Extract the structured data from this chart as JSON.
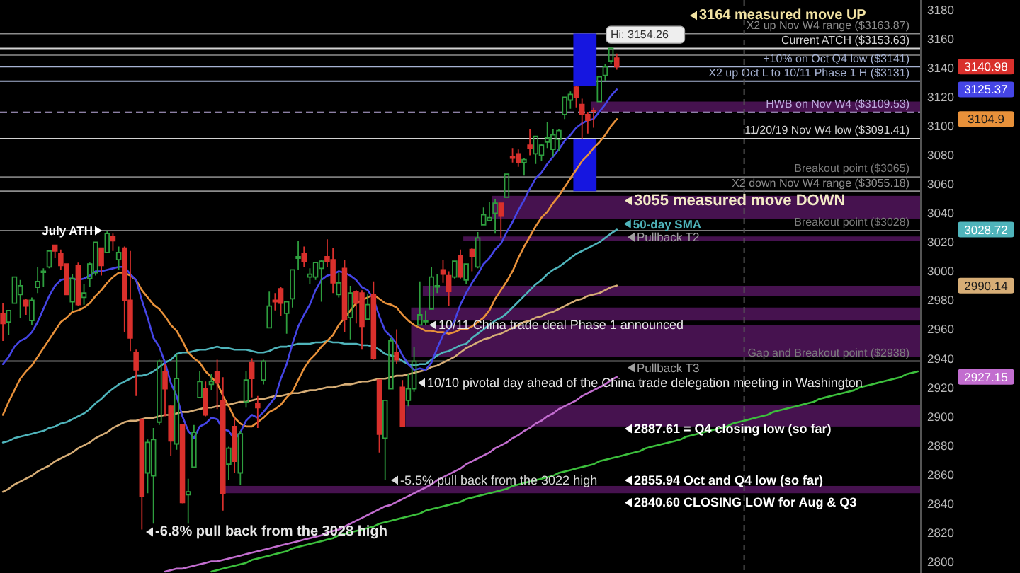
{
  "chart_data": {
    "type": "candlestick",
    "ylim": [
      2792,
      3187
    ],
    "yticks": [
      2800,
      2820,
      2840,
      2860,
      2880,
      2900,
      2920,
      2940,
      2960,
      2980,
      3000,
      3020,
      3040,
      3060,
      3080,
      3100,
      3120,
      3140,
      3160,
      3180
    ],
    "tick_labels": "y",
    "categories": [
      null,
      null,
      null,
      null,
      null,
      null,
      null,
      null,
      null,
      null,
      null,
      null,
      null,
      null,
      null,
      null,
      null,
      null,
      null,
      null,
      null,
      null,
      null,
      null,
      null,
      null,
      null,
      null,
      null,
      null,
      null,
      null,
      null,
      null,
      null,
      null,
      null,
      null,
      null,
      null,
      null,
      null,
      null,
      null,
      null,
      null,
      null,
      null,
      null,
      null,
      null,
      null,
      null,
      null,
      null,
      null,
      null,
      null,
      null,
      null,
      null,
      null,
      null,
      null,
      null,
      null,
      null,
      null,
      null,
      null,
      null,
      null,
      null,
      null,
      null,
      null,
      null,
      null,
      null,
      null,
      null,
      null,
      null,
      null,
      null,
      null,
      null,
      null,
      null,
      null,
      null,
      null,
      null,
      null,
      null,
      null,
      null,
      null,
      null,
      null,
      null,
      null,
      null,
      null,
      null,
      null,
      null,
      null,
      null,
      null,
      null,
      null,
      null,
      null,
      null,
      null,
      null,
      null,
      null,
      null,
      null,
      null,
      null,
      null,
      null,
      null,
      null,
      null,
      null,
      null,
      null,
      null,
      null,
      null,
      null,
      null,
      null,
      null,
      null,
      null,
      null,
      null,
      null,
      null,
      null,
      null,
      null,
      null,
      null,
      null,
      null,
      null,
      null,
      null,
      null,
      null,
      null,
      null,
      null
    ],
    "ohlc": [
      [
        2971,
        2978,
        2952,
        2964
      ],
      [
        2965,
        2973,
        2956,
        2973
      ],
      [
        2978,
        2996,
        2978,
        2996
      ],
      [
        2984,
        2994,
        2968,
        2990
      ],
      [
        2980,
        2981,
        2970,
        2976
      ],
      [
        2966,
        2982,
        2963,
        2980
      ],
      [
        2989,
        3003,
        2985,
        2993
      ],
      [
        3000,
        3002,
        2989,
        3000
      ],
      [
        3003,
        3014,
        3002,
        3014
      ],
      [
        3018,
        3018,
        3009,
        3014
      ],
      [
        3012,
        3015,
        3001,
        3004
      ],
      [
        3005,
        3005,
        2984,
        2984
      ],
      [
        2979,
        2998,
        2973,
        2995
      ],
      [
        3004,
        3006,
        2976,
        2977
      ],
      [
        2982,
        2991,
        2977,
        2985
      ],
      [
        2995,
        3006,
        2989,
        3005
      ],
      [
        2999,
        3020,
        2997,
        3020
      ],
      [
        3016,
        3016,
        2997,
        3004
      ],
      [
        3013,
        3028,
        3013,
        3026
      ],
      [
        3024,
        3026,
        3014,
        3021
      ],
      [
        3008,
        3017,
        3001,
        3013
      ],
      [
        3016,
        3017,
        2958,
        2980
      ],
      [
        2980,
        3014,
        2945,
        2954
      ],
      [
        2944,
        2946,
        2914,
        2932
      ],
      [
        2898,
        2898,
        2822,
        2845
      ],
      [
        2861,
        2884,
        2847,
        2882
      ],
      [
        2859,
        2892,
        2826,
        2884
      ],
      [
        2896,
        2939,
        2894,
        2938
      ],
      [
        2931,
        2936,
        2900,
        2919
      ],
      [
        2907,
        2908,
        2873,
        2883
      ],
      [
        2881,
        2943,
        2877,
        2926
      ],
      [
        2894,
        2894,
        2840,
        2840.6
      ],
      [
        2846,
        2857,
        2826,
        2848
      ],
      [
        2865,
        2894,
        2865,
        2889
      ],
      [
        2913,
        2931,
        2913,
        2924
      ],
      [
        2919,
        2924,
        2900,
        2901
      ],
      [
        2922,
        2929,
        2918,
        2924
      ],
      [
        2931,
        2939,
        2905,
        2923
      ],
      [
        2911,
        2927,
        2835,
        2847
      ],
      [
        2867,
        2879,
        2856,
        2878
      ],
      [
        2893,
        2899,
        2861,
        2869
      ],
      [
        2861,
        2890,
        2853,
        2888
      ],
      [
        2910,
        2931,
        2906,
        2925
      ],
      [
        2937,
        2940,
        2913,
        2926
      ],
      [
        2909,
        2914,
        2892,
        2906
      ],
      [
        2925,
        2939,
        2922,
        2938
      ],
      [
        2961,
        2986,
        2961,
        2976
      ],
      [
        2980,
        2985,
        2973,
        2979
      ],
      [
        2988,
        2989,
        2969,
        2978
      ],
      [
        2971,
        2979,
        2957,
        2979
      ],
      [
        2981,
        3001,
        2975,
        3001
      ],
      [
        3009,
        3021,
        3001,
        3010
      ],
      [
        3012,
        3017,
        3003,
        3007
      ],
      [
        2996,
        3002,
        2991,
        2998
      ],
      [
        2996,
        3006,
        2994,
        3006
      ],
      [
        3002,
        3008,
        2979,
        3007
      ],
      [
        3010,
        3022,
        3003,
        3007
      ],
      [
        3008,
        3016,
        2985,
        2992
      ],
      [
        2984,
        2999,
        2982,
        2992
      ],
      [
        3002,
        3008,
        2958,
        2967
      ],
      [
        2968,
        2990,
        2953,
        2985
      ],
      [
        2986,
        2987,
        2964,
        2978
      ],
      [
        2985,
        2987,
        2946,
        2962
      ],
      [
        2967,
        2984,
        2967,
        2977
      ],
      [
        2984,
        2993,
        2939,
        2940
      ],
      [
        2925,
        2925,
        2875,
        2887.61
      ],
      [
        2885,
        2911,
        2855.94,
        2911
      ],
      [
        2919,
        2954,
        2919,
        2952
      ],
      [
        2944,
        2960,
        2936,
        2939
      ],
      [
        2920,
        2925,
        2893,
        2893
      ],
      [
        2911,
        2929,
        2907,
        2919
      ],
      [
        2919,
        2948,
        2917,
        2938
      ],
      [
        2963,
        2993,
        2963,
        2970
      ],
      [
        2966,
        2973,
        2963,
        2966
      ],
      [
        2974,
        3003,
        2974,
        2996
      ],
      [
        2990,
        2998,
        2985,
        2990
      ],
      [
        3001,
        3008,
        2992,
        2998
      ],
      [
        2997,
        3000,
        2976,
        2986
      ],
      [
        2996,
        3007,
        2995,
        3007
      ],
      [
        3011,
        3015,
        2995,
        2996
      ],
      [
        2994,
        3005,
        2991,
        3005
      ],
      [
        3015,
        3016,
        3000,
        3010
      ],
      [
        3003,
        3027,
        3002,
        3023
      ],
      [
        3032,
        3044,
        3032,
        3039
      ],
      [
        3035,
        3048,
        3035,
        3037
      ],
      [
        3040,
        3050,
        3026,
        3047
      ],
      [
        3047,
        3047,
        3023,
        3038
      ],
      [
        3051,
        3067,
        3051,
        3067
      ],
      [
        3079,
        3085,
        3075,
        3078
      ],
      [
        3081,
        3084,
        3072,
        3075
      ],
      [
        3075,
        3078,
        3066,
        3077
      ],
      [
        3087,
        3098,
        3080,
        3085
      ],
      [
        3081,
        3093,
        3074,
        3093
      ],
      [
        3080,
        3088,
        3076,
        3087
      ],
      [
        3089,
        3103,
        3085,
        3092
      ],
      [
        3084,
        3098,
        3079,
        3094
      ],
      [
        3091,
        3098,
        3083,
        3097
      ],
      [
        3108,
        3120,
        3105,
        3120
      ],
      [
        3118,
        3124,
        3112,
        3122
      ],
      [
        3127,
        3128,
        3113,
        3120
      ],
      [
        3115,
        3119,
        3091.41,
        3108
      ],
      [
        3108,
        3110,
        3095,
        3104
      ],
      [
        3111,
        3113,
        3099,
        3110
      ],
      [
        3117,
        3134,
        3117,
        3134
      ],
      [
        3135,
        3143,
        3131,
        3141
      ],
      [
        3145,
        3154.26,
        3143,
        3153.63
      ],
      [
        3147,
        3150,
        3139,
        3140.98
      ],
      null,
      null,
      null,
      null,
      null,
      null,
      null,
      null,
      null,
      null,
      null,
      null,
      null,
      null,
      null,
      null,
      null,
      null,
      null,
      null,
      null,
      null,
      null,
      null,
      null,
      null,
      null,
      null,
      null,
      null,
      null,
      null,
      null,
      null,
      null,
      null,
      null,
      null,
      null,
      null,
      null,
      null,
      null,
      null,
      null,
      null,
      null,
      null,
      null,
      null,
      null,
      null
    ],
    "colors": [
      "#d9302c",
      "#2e9e3e",
      "#2e9e3e",
      "#2e9e3e",
      "#d9302c",
      "#2e9e3e",
      "#2e9e3e",
      "#2e9e3e",
      "#2e9e3e",
      "#d9302c",
      "#d9302c",
      "#d9302c",
      "#2e9e3e",
      "#d9302c",
      "#2e9e3e",
      "#2e9e3e",
      "#2e9e3e",
      "#d9302c",
      "#2e9e3e",
      "#d9302c",
      "#2e9e3e",
      "#d9302c",
      "#d9302c",
      "#d9302c",
      "#d9302c",
      "#2e9e3e",
      "#2e9e3e",
      "#2e9e3e",
      "#d9302c",
      "#d9302c",
      "#2e9e3e",
      "#d9302c",
      "#2e9e3e",
      "#2e9e3e",
      "#2e9e3e",
      "#d9302c",
      "#2e9e3e",
      "#d9302c",
      "#d9302c",
      "#2e9e3e",
      "#d9302c",
      "#2e9e3e",
      "#2e9e3e",
      "#d9302c",
      "#d9302c",
      "#2e9e3e",
      "#2e9e3e",
      "#d9302c",
      "#d9302c",
      "#2e9e3e",
      "#2e9e3e",
      "#2e9e3e",
      "#d9302c",
      "#2e9e3e",
      "#2e9e3e",
      "#2e9e3e",
      "#d9302c",
      "#d9302c",
      "#2e9e3e",
      "#d9302c",
      "#2e9e3e",
      "#d9302c",
      "#d9302c",
      "#2e9e3e",
      "#d9302c",
      "#d9302c",
      "#2e9e3e",
      "#2e9e3e",
      "#d9302c",
      "#d9302c",
      "#2e9e3e",
      "#2e9e3e",
      "#2e9e3e",
      "#2e9e3e",
      "#2e9e3e",
      "#2e9e3e",
      "#d9302c",
      "#d9302c",
      "#2e9e3e",
      "#d9302c",
      "#2e9e3e",
      "#d9302c",
      "#2e9e3e",
      "#2e9e3e",
      "#2e9e3e",
      "#2e9e3e",
      "#d9302c",
      "#2e9e3e",
      "#d9302c",
      "#d9302c",
      "#2e9e3e",
      "#d9302c",
      "#2e9e3e",
      "#2e9e3e",
      "#2e9e3e",
      "#2e9e3e",
      "#2e9e3e",
      "#2e9e3e",
      "#2e9e3e",
      "#d9302c",
      "#d9302c",
      "#d9302c",
      "#d9302c",
      "#2e9e3e",
      "#2e9e3e",
      "#2e9e3e",
      "#d9302c",
      null,
      null,
      null,
      null,
      null,
      null,
      null,
      null,
      null,
      null,
      null,
      null,
      null,
      null,
      null,
      null,
      null,
      null,
      null,
      null,
      null,
      null,
      null,
      null,
      null,
      null,
      null,
      null,
      null,
      null,
      null,
      null,
      null,
      null,
      null,
      null,
      null,
      null,
      null,
      null,
      null,
      null,
      null,
      null,
      null,
      null,
      null,
      null,
      null,
      null,
      null,
      null
    ],
    "series": [
      {
        "type": "line",
        "color": "#c26dcf",
        "values": [
          null,
          null,
          null,
          null,
          null,
          null,
          null,
          null,
          null,
          null,
          null,
          null,
          null,
          null,
          null,
          null,
          null,
          null,
          null,
          null,
          null,
          null,
          null,
          null,
          null,
          null,
          null,
          null,
          2793,
          2794,
          2795,
          2795,
          2796,
          2797,
          2798,
          2799,
          2800,
          2800,
          2801,
          2802,
          2803,
          2804,
          2805,
          2806,
          2807,
          2808,
          2809,
          2810,
          2811,
          2812,
          2813,
          2814,
          2815,
          2816,
          2817,
          2818,
          2820,
          2821,
          2822,
          2824,
          2826,
          2828,
          2830,
          2832,
          2834,
          2836,
          2838,
          2839,
          2841,
          2843,
          2845,
          2847,
          2849,
          2851,
          2853,
          2856,
          2858,
          2860,
          2862,
          2864,
          2867,
          2869,
          2871,
          2873,
          2875,
          2878,
          2880,
          2882,
          2885,
          2887,
          2890,
          2892,
          2895,
          2897,
          2900,
          2902,
          2905,
          2907,
          2909,
          2911,
          2914,
          2916,
          2918,
          2920,
          2922,
          2925,
          2927.15,
          null,
          null,
          null,
          null,
          null,
          null,
          null,
          null,
          null,
          null,
          null,
          null,
          null,
          null,
          null,
          null,
          null,
          null,
          null,
          null,
          null,
          null,
          null,
          null,
          null,
          null,
          null,
          null,
          null,
          null,
          null,
          null,
          null,
          null,
          null,
          null,
          null,
          null,
          null,
          null,
          null,
          null,
          null,
          null,
          null,
          null,
          null,
          null,
          null,
          null,
          null,
          null
        ]
      },
      {
        "type": "line",
        "color": "#d6ad76",
        "values": [
          2848,
          2850,
          2853,
          2855,
          2857,
          2859,
          2862,
          2864,
          2866,
          2869,
          2871,
          2873,
          2875,
          2878,
          2880,
          2882,
          2885,
          2887,
          2889,
          2892,
          2894,
          2896,
          2897,
          2897,
          2898,
          2899,
          2899,
          2900,
          2901,
          2901,
          2902,
          2903,
          2903,
          2904,
          2905,
          2906,
          2906,
          2907,
          2908,
          2908,
          2909,
          2910,
          2910,
          2911,
          2912,
          2912,
          2913,
          2914,
          2914,
          2915,
          2916,
          2916,
          2917,
          2918,
          2918,
          2919,
          2920,
          2920,
          2921,
          2922,
          2922,
          2923,
          2924,
          2924,
          2925,
          2926,
          2926,
          2927,
          2928,
          2928,
          2929,
          2930,
          2931,
          2932,
          2934,
          2935,
          2937,
          2939,
          2941,
          2944,
          2947,
          2949,
          2951,
          2953,
          2954,
          2956,
          2957,
          2959,
          2961,
          2963,
          2965,
          2966,
          2968,
          2969,
          2971,
          2972,
          2974,
          2976,
          2978,
          2980,
          2981,
          2983,
          2984,
          2985,
          2987,
          2989,
          2990.14,
          null,
          null,
          null,
          null,
          null,
          null,
          null,
          null,
          null,
          null,
          null,
          null,
          null,
          null,
          null,
          null,
          null,
          null,
          null,
          null,
          null,
          null,
          null,
          null,
          null,
          null,
          null,
          null,
          null,
          null,
          null,
          null,
          null,
          null,
          null,
          null,
          null,
          null,
          null,
          null,
          null,
          null,
          null,
          null,
          null,
          null,
          null,
          null,
          null,
          null,
          null,
          null
        ]
      },
      {
        "type": "line",
        "name": "50-day SMA",
        "color": "#4fb4bb",
        "values": [
          2882,
          2883,
          2885,
          2886,
          2887,
          2888,
          2889,
          2890,
          2892,
          2893,
          2895,
          2896,
          2898,
          2900,
          2902,
          2905,
          2909,
          2912,
          2916,
          2919,
          2922,
          2924,
          2926,
          2928,
          2928,
          2929,
          2931,
          2934,
          2937,
          2939,
          2943,
          2944,
          2944,
          2945,
          2946,
          2946,
          2947,
          2948,
          2947,
          2947,
          2946,
          2946,
          2946,
          2945,
          2944,
          2944,
          2945,
          2947,
          2948,
          2948,
          2949,
          2950,
          2950,
          2950,
          2951,
          2951,
          2952,
          2951,
          2951,
          2950,
          2950,
          2950,
          2949,
          2949,
          2948,
          2946,
          2943,
          2942,
          2941,
          2938,
          2936,
          2935,
          2936,
          2936,
          2939,
          2942,
          2944,
          2945,
          2947,
          2949,
          2950,
          2954,
          2957,
          2960,
          2963,
          2966,
          2968,
          2971,
          2975,
          2979,
          2983,
          2987,
          2991,
          2994,
          2998,
          3001,
          3003,
          3006,
          3009,
          3012,
          3014,
          3016,
          3018,
          3020,
          3023,
          3026,
          3028.72,
          null,
          null,
          null,
          null,
          null,
          null,
          null,
          null,
          null,
          null,
          null,
          null,
          null,
          null,
          null,
          null,
          null,
          null,
          null,
          null,
          null,
          null,
          null,
          null,
          null,
          null,
          null,
          null,
          null,
          null,
          null,
          null,
          null,
          null,
          null,
          null,
          null,
          null,
          null,
          null,
          null,
          null,
          null,
          null,
          null,
          null,
          null,
          null,
          null,
          null,
          null,
          null
        ]
      },
      {
        "type": "line",
        "color": "#e8913a",
        "values": [
          2901,
          2910,
          2918,
          2926,
          2931,
          2935,
          2941,
          2947,
          2953,
          2959,
          2965,
          2968,
          2972,
          2973,
          2975,
          2978,
          2983,
          2987,
          2992,
          2996,
          2999,
          2999,
          2997,
          2994,
          2987,
          2982,
          2977,
          2974,
          2969,
          2963,
          2959,
          2952,
          2944,
          2940,
          2937,
          2931,
          2927,
          2923,
          2914,
          2907,
          2899,
          2895,
          2893,
          2893,
          2896,
          2899,
          2903,
          2905,
          2908,
          2913,
          2917,
          2925,
          2933,
          2939,
          2943,
          2948,
          2952,
          2956,
          2963,
          2968,
          2973,
          2978,
          2980,
          2982,
          2984,
          2981,
          2978,
          2977,
          2975,
          2970,
          2966,
          2963,
          2961,
          2959,
          2959,
          2958,
          2958,
          2957,
          2958,
          2960,
          2960,
          2962,
          2965,
          2968,
          2973,
          2981,
          2987,
          2993,
          3000,
          3009,
          3017,
          3024,
          3031,
          3037,
          3041,
          3047,
          3052,
          3058,
          3064,
          3070,
          3076,
          3080,
          3085,
          3089,
          3094,
          3100,
          3104.9,
          null,
          null,
          null,
          null,
          null,
          null,
          null,
          null,
          null,
          null,
          null,
          null,
          null,
          null,
          null,
          null,
          null,
          null,
          null,
          null,
          null,
          null,
          null,
          null,
          null,
          null,
          null,
          null,
          null,
          null,
          null,
          null,
          null,
          null,
          null,
          null,
          null,
          null,
          null,
          null,
          null,
          null,
          null,
          null,
          null,
          null,
          null,
          null,
          null,
          null,
          null,
          null
        ]
      },
      {
        "type": "line",
        "color": "#4545e6",
        "values": [
          2936,
          2941,
          2948,
          2952,
          2954,
          2958,
          2965,
          2974,
          2983,
          2990,
          2994,
          2995,
          2995,
          2994,
          2995,
          2997,
          3000,
          3000,
          3001,
          3002,
          3003,
          3003,
          2998,
          2994,
          2980,
          2968,
          2954,
          2948,
          2937,
          2923,
          2914,
          2900,
          2890,
          2885,
          2893,
          2895,
          2899,
          2898,
          2891,
          2890,
          2884,
          2889,
          2897,
          2901,
          2899,
          2903,
          2908,
          2913,
          2926,
          2936,
          2950,
          2962,
          2970,
          2977,
          2987,
          2994,
          2997,
          2998,
          3000,
          2999,
          2997,
          2994,
          2989,
          2987,
          2981,
          2969,
          2959,
          2955,
          2950,
          2942,
          2936,
          2932,
          2933,
          2932,
          2937,
          2947,
          2956,
          2960,
          2966,
          2977,
          2985,
          2992,
          2998,
          3005,
          3009,
          3015,
          3019,
          3027,
          3034,
          3042,
          3049,
          3057,
          3064,
          3068,
          3074,
          3079,
          3084,
          3090,
          3094,
          3099,
          3102,
          3104,
          3105,
          3110,
          3115,
          3121,
          3125.37,
          null,
          null,
          null,
          null,
          null,
          null,
          null,
          null,
          null,
          null,
          null,
          null,
          null,
          null,
          null,
          null,
          null,
          null,
          null,
          null,
          null,
          null,
          null,
          null,
          null,
          null,
          null,
          null,
          null,
          null,
          null,
          null,
          null,
          null,
          null,
          null,
          null,
          null,
          null,
          null,
          null,
          null,
          null,
          null,
          null,
          null,
          null,
          null,
          null,
          null,
          null,
          null
        ]
      },
      {
        "type": "line",
        "color": "#3cbf3c",
        "values": [
          null,
          null,
          null,
          null,
          null,
          null,
          null,
          null,
          null,
          null,
          null,
          null,
          null,
          null,
          null,
          null,
          null,
          null,
          null,
          null,
          null,
          null,
          null,
          null,
          null,
          null,
          null,
          null,
          null,
          null,
          null,
          null,
          null,
          null,
          null,
          null,
          2793,
          2794,
          2795,
          2796,
          2797,
          2798,
          2799,
          2801,
          2802,
          2803,
          2804,
          2805,
          2806,
          2807,
          2809,
          2810,
          2811,
          2812,
          2813,
          2814,
          2815,
          2816,
          2818,
          2819,
          2820,
          2821,
          2822,
          2823,
          2824,
          2826,
          2827,
          2828,
          2829,
          2830,
          2831,
          2832,
          2833,
          2835,
          2836,
          2837,
          2838,
          2839,
          2840,
          2841,
          2843,
          2844,
          2845,
          2846,
          2847,
          2848,
          2849,
          2850,
          2852,
          2853,
          2854,
          2855,
          2856,
          2857,
          2858,
          2859,
          2861,
          2862,
          2863,
          2864,
          2865,
          2866,
          2867,
          2869,
          2870,
          2871,
          2872,
          2873,
          2874,
          2875,
          2876,
          2878,
          2879,
          2880,
          2881,
          2882,
          2883,
          2884,
          2886,
          2887,
          2888,
          2889,
          2890,
          2891,
          2892,
          2893,
          2895,
          2896,
          2897,
          2898,
          2899,
          2900,
          2901,
          2903,
          2904,
          2905,
          2906,
          2907,
          2908,
          2909,
          2910,
          2912,
          2913,
          2914,
          2915,
          2916,
          2917,
          2918,
          2920,
          2921,
          2922,
          2923,
          2924,
          2925,
          2926,
          2927,
          2929,
          2930,
          2931
        ]
      }
    ],
    "ref_lines": [
      {
        "axis": "y",
        "value": 3163.87,
        "label": "X2 up Nov W4 range ($3163.87)",
        "color": "#8c8c8c"
      },
      {
        "axis": "y",
        "value": 3153.63,
        "label": "Current ATCH ($3153.63)",
        "color": "#d2d2d2"
      },
      {
        "axis": "y",
        "value": 3149,
        "color": "#6c6c6c"
      },
      {
        "axis": "y",
        "value": 3141,
        "label": "+10% on Oct Q4 low ($3141)",
        "color": "#a6b2d2"
      },
      {
        "axis": "y",
        "value": 3131,
        "label": "X2 up Oct L to 10/11 Phase 1 H ($3131)",
        "color": "#a6b2d2"
      },
      {
        "axis": "y",
        "value": 3109.53,
        "label": "HWB on Nov W4 ($3109.53)",
        "color": "#bcaadc",
        "line_style": "dashed"
      },
      {
        "axis": "y",
        "value": 3091.41,
        "label": "11/20/19 Nov W4 low ($3091.41)",
        "color": "#d2d2d2"
      },
      {
        "axis": "y",
        "value": 3065,
        "label": "Breakout point ($3065)",
        "color": "#7c7c7c"
      },
      {
        "axis": "y",
        "value": 3055.18,
        "label": "X2 down Nov W4 range ($3055.18)",
        "color": "#8c8c8c"
      },
      {
        "axis": "y",
        "value": 3028,
        "label": "Breakout point ($3028)",
        "color": "#7c7c7c"
      },
      {
        "axis": "y",
        "value": 2938,
        "label": "Gap and Breakout point ($2938)",
        "color": "#7c7c7c"
      }
    ],
    "bands": [
      {
        "axis": "y",
        "from": 3109.53,
        "to": 3117,
        "color": "#46124f"
      },
      {
        "axis": "y",
        "from": 3036,
        "to": 3052,
        "color": "#46124f"
      },
      {
        "axis": "y",
        "from": 3021,
        "to": 3024,
        "color": "#46124f"
      },
      {
        "axis": "y",
        "from": 2983,
        "to": 2990,
        "color": "#46124f"
      },
      {
        "axis": "y",
        "from": 2966,
        "to": 2975,
        "color": "#46124f"
      },
      {
        "axis": "y",
        "from": 2941,
        "to": 2963,
        "color": "#46124f"
      },
      {
        "axis": "y",
        "from": 2893,
        "to": 2908,
        "color": "#46124f"
      },
      {
        "axis": "y",
        "from": 2847,
        "to": 2852,
        "color": "#46124f"
      }
    ],
    "annotations": [
      {
        "text": "Hi: 3154.26",
        "y": 3154.26
      },
      {
        "text": "3164 measured move UP",
        "y": 3164
      },
      {
        "text": "3055 measured move DOWN",
        "y": 3055
      },
      {
        "text": "Pullback T2",
        "y": 3024
      },
      {
        "text": "July ATH",
        "y": 3028
      },
      {
        "text": "10/11 China trade deal Phase 1 announced",
        "y": 2963
      },
      {
        "text": "Pullback T3",
        "y": 2935
      },
      "10/10 pivotal day ahead of the China trade delegation meeting in Washington",
      "2887.61 = Q4 closing low (so far)",
      {
        "text": "-5.5% pull back from the 3022 high",
        "y": 2855.94
      },
      {
        "text": "2855.94 Oct and Q4 low (so far)",
        "y": 2855.94
      },
      "2840.60 CLOSING LOW for Aug & Q3",
      "-6.8% pull back from the 3028 high",
      "3140.98",
      "3125.37",
      "3104.9",
      "3028.72",
      "2990.14",
      "2927.15"
    ]
  }
}
